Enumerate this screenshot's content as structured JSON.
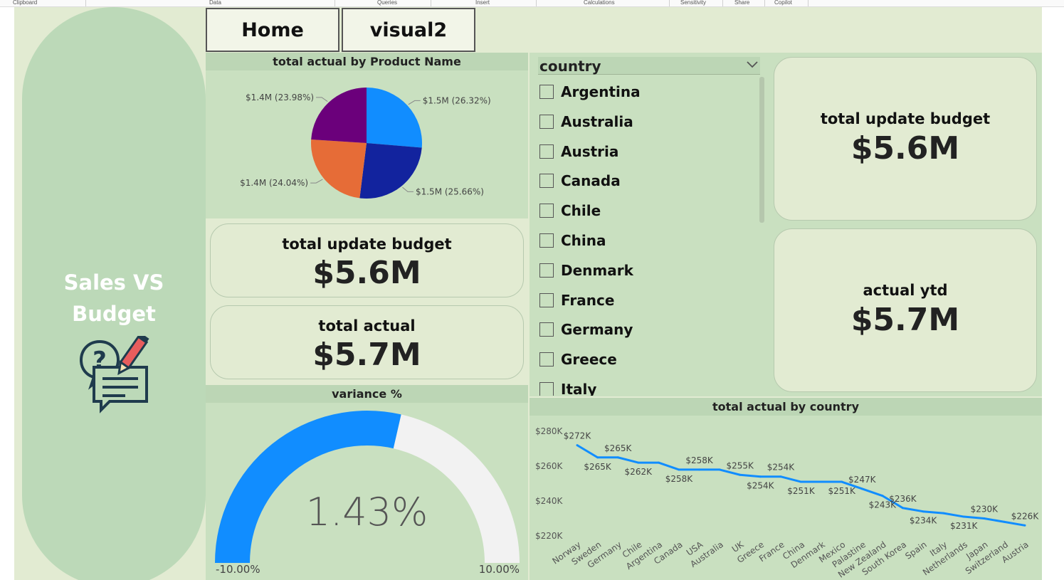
{
  "ribbon": {
    "groups": [
      "Clipboard",
      "Data",
      "Queries",
      "Insert",
      "Calculations",
      "Sensitivity",
      "Share",
      "Copilot"
    ]
  },
  "sidebar": {
    "title_line1": "Sales VS",
    "title_line2": "Budget",
    "icon": "question-pencil-chat-icon"
  },
  "nav": {
    "home_label": "Home",
    "visual2_label": "visual2"
  },
  "pie": {
    "title": "total actual by Product Name",
    "chart_data": {
      "type": "pie",
      "slices": [
        {
          "label": "$1.5M (26.32%)",
          "value": 26.32,
          "color": "#118dff"
        },
        {
          "label": "$1.5M (25.66%)",
          "value": 25.66,
          "color": "#12239e"
        },
        {
          "label": "$1.4M (24.04%)",
          "value": 24.04,
          "color": "#e66c37"
        },
        {
          "label": "$1.4M (23.98%)",
          "value": 23.98,
          "color": "#6b007b"
        }
      ]
    }
  },
  "cards": {
    "budget_mid": {
      "label": "total update budget",
      "value": "$5.6M"
    },
    "actual_mid": {
      "label": "total actual",
      "value": "$5.7M"
    },
    "budget_right": {
      "label": "total update budget",
      "value": "$5.6M"
    },
    "ytd_right": {
      "label": "actual ytd",
      "value": "$5.7M"
    }
  },
  "gauge": {
    "title": "variance %",
    "value_text": "1.43%",
    "min_label": "-10.00%",
    "max_label": "10.00%",
    "chart_data": {
      "type": "gauge",
      "value": 1.43,
      "min": -10,
      "max": 10,
      "fill_color": "#118dff",
      "track_color": "#f2f2f2"
    }
  },
  "slicer": {
    "title": "country",
    "items": [
      "Argentina",
      "Australia",
      "Austria",
      "Canada",
      "Chile",
      "China",
      "Denmark",
      "France",
      "Germany",
      "Greece",
      "Italy"
    ]
  },
  "line": {
    "title": "total actual by country",
    "chart_data": {
      "type": "line",
      "categories": [
        "Norway",
        "Sweden",
        "Germany",
        "Chile",
        "Argentina",
        "Canada",
        "USA",
        "Australia",
        "UK",
        "Greece",
        "France",
        "China",
        "Denmark",
        "Mexico",
        "Palastine",
        "New Zealand",
        "South Korea",
        "Spain",
        "Italy",
        "Netherlands",
        "Japan",
        "Switzerland",
        "Austria"
      ],
      "values": [
        272,
        265,
        265,
        262,
        262,
        258,
        258,
        258,
        255,
        254,
        254,
        251,
        251,
        251,
        247,
        243,
        236,
        234,
        233,
        231,
        230,
        228,
        226
      ],
      "labels": [
        "$272K",
        "$265K",
        "$265K",
        "$262K",
        "",
        "$258K",
        "$258K",
        "",
        "$255K",
        "$254K",
        "$254K",
        "$251K",
        "",
        "$251K",
        "$247K",
        "$243K",
        "$236K",
        "$234K",
        "",
        "$231K",
        "$230K",
        "",
        "$226K"
      ],
      "yticks": [
        "$220K",
        "$240K",
        "$260K",
        "$280K"
      ],
      "ylim": [
        220,
        280
      ],
      "color": "#118dff"
    }
  }
}
